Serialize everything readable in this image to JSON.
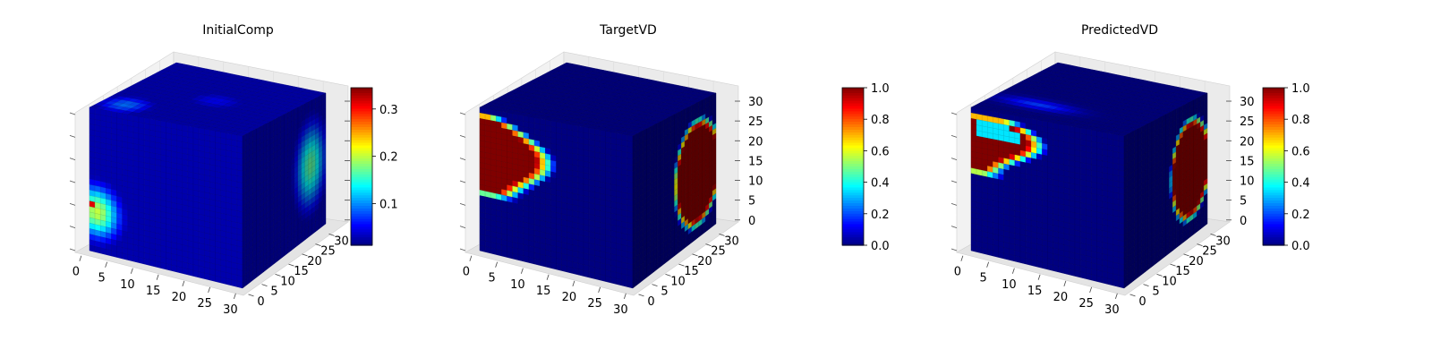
{
  "chart_data": [
    {
      "type": "heatmap",
      "title": "InitialComp",
      "colormap": "jet",
      "xlabel": "",
      "ylabel": "",
      "zlabel": "",
      "xlim": [
        0,
        32
      ],
      "ylim": [
        0,
        32
      ],
      "zlim": [
        0,
        32
      ],
      "x_ticks": [
        "0",
        "5",
        "10",
        "15",
        "20",
        "25",
        "30"
      ],
      "y_ticks": [
        "0",
        "5",
        "10",
        "15",
        "20",
        "25",
        "30"
      ],
      "z_ticks": [],
      "colorbar": {
        "min": 0.012,
        "max": 0.345,
        "ticks": [
          0.1,
          0.2,
          0.3
        ],
        "tick_labels": [
          "0.1",
          "0.2",
          "0.3"
        ]
      },
      "features": [
        {
          "face": "front",
          "shape": "edge-lobe",
          "u": 0.05,
          "v": 0.72,
          "ru": 0.18,
          "rv": 0.22,
          "value": 0.2
        },
        {
          "face": "front",
          "shape": "blob",
          "u": 0.02,
          "v": 0.68,
          "ru": 0.04,
          "rv": 0.04,
          "value": 0.33
        },
        {
          "face": "right",
          "shape": "blob",
          "u": 0.82,
          "v": 0.48,
          "ru": 0.22,
          "rv": 0.38,
          "value": 0.17
        },
        {
          "face": "top",
          "shape": "blob",
          "u": 0.15,
          "v": 0.85,
          "ru": 0.2,
          "rv": 0.2,
          "value": 0.09
        },
        {
          "face": "top",
          "shape": "blob",
          "u": 0.55,
          "v": 0.5,
          "ru": 0.25,
          "rv": 0.2,
          "value": 0.05
        }
      ]
    },
    {
      "type": "heatmap",
      "title": "TargetVD",
      "colormap": "jet",
      "xlabel": "",
      "ylabel": "",
      "zlabel": "",
      "xlim": [
        0,
        32
      ],
      "ylim": [
        0,
        32
      ],
      "zlim": [
        0,
        32
      ],
      "x_ticks": [
        "0",
        "5",
        "10",
        "15",
        "20",
        "25",
        "30"
      ],
      "y_ticks": [
        "0",
        "5",
        "10",
        "15",
        "20",
        "25",
        "30"
      ],
      "z_ticks": [
        "0",
        "5",
        "10",
        "15",
        "20",
        "25",
        "30"
      ],
      "colorbar": {
        "min": 0.0,
        "max": 1.0,
        "ticks": [
          0.0,
          0.2,
          0.4,
          0.6,
          0.8,
          1.0
        ],
        "tick_labels": [
          "0.0",
          "0.2",
          "0.4",
          "0.6",
          "0.8",
          "1.0"
        ]
      },
      "features": [
        {
          "face": "front",
          "shape": "s-band",
          "value": 1.0
        },
        {
          "face": "right",
          "shape": "ellipse",
          "u": 0.78,
          "v": 0.52,
          "ru": 0.28,
          "rv": 0.4,
          "value": 1.0
        }
      ]
    },
    {
      "type": "heatmap",
      "title": "PredictedVD",
      "colormap": "jet",
      "xlabel": "",
      "ylabel": "",
      "zlabel": "",
      "xlim": [
        0,
        32
      ],
      "ylim": [
        0,
        32
      ],
      "zlim": [
        0,
        32
      ],
      "x_ticks": [
        "0",
        "5",
        "10",
        "15",
        "20",
        "25",
        "30"
      ],
      "y_ticks": [
        "0",
        "5",
        "10",
        "15",
        "20",
        "25",
        "30"
      ],
      "z_ticks": [
        "0",
        "5",
        "10",
        "15",
        "20",
        "25",
        "30"
      ],
      "colorbar": {
        "min": 0.0,
        "max": 1.0,
        "ticks": [
          0.0,
          0.2,
          0.4,
          0.6,
          0.8,
          1.0
        ],
        "tick_labels": [
          "0.0",
          "0.2",
          "0.4",
          "0.6",
          "0.8",
          "1.0"
        ]
      },
      "features": [
        {
          "face": "front",
          "shape": "s-band-thin",
          "value": 1.0
        },
        {
          "face": "right",
          "shape": "ellipse",
          "u": 0.8,
          "v": 0.5,
          "ru": 0.24,
          "rv": 0.38,
          "value": 1.0
        },
        {
          "face": "top",
          "shape": "blob",
          "u": 0.3,
          "v": 0.75,
          "ru": 0.3,
          "rv": 0.1,
          "value": 0.18
        }
      ]
    }
  ]
}
